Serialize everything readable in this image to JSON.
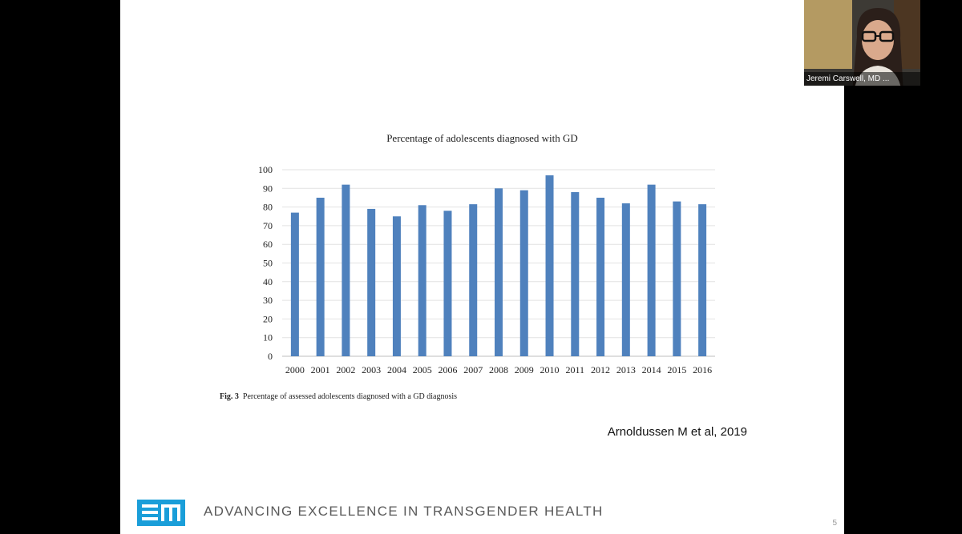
{
  "chart_data": {
    "type": "bar",
    "title": "Percentage of adolescents diagnosed with GD",
    "categories": [
      "2000",
      "2001",
      "2002",
      "2003",
      "2004",
      "2005",
      "2006",
      "2007",
      "2008",
      "2009",
      "2010",
      "2011",
      "2012",
      "2013",
      "2014",
      "2015",
      "2016"
    ],
    "values": [
      77,
      85,
      92,
      79,
      75,
      81,
      78,
      81.5,
      90,
      89,
      97,
      88,
      85,
      82,
      92,
      83,
      81.5
    ],
    "ylim": [
      0,
      100
    ],
    "yticks": [
      0,
      10,
      20,
      30,
      40,
      50,
      60,
      70,
      80,
      90,
      100
    ],
    "xlabel": "",
    "ylabel": "",
    "grid": true,
    "bar_color": "#4f81bd"
  },
  "figure": {
    "caption_label": "Fig. 3",
    "caption_text": "Percentage of assessed adolescents diagnosed with a GD diagnosis"
  },
  "citation": "Arnoldussen M et al, 2019",
  "footer": {
    "tagline": "ADVANCING EXCELLENCE IN TRANSGENDER HEALTH",
    "page_number": "5",
    "brand_color": "#1a9ed9"
  },
  "participant": {
    "name": "Jeremi Carswell, MD ..."
  }
}
